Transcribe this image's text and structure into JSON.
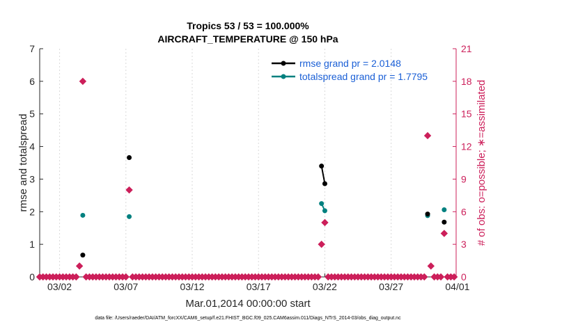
{
  "chart_data": {
    "type": "scatter",
    "title_line1": "Tropics 53 / 53 = 100.000%",
    "title_line2": "AIRCRAFT_TEMPERATURE @ 150 hPa",
    "xlabel": "Mar.01,2014 00:00:00 start",
    "ylabel_left": "rmse and totalspread",
    "ylabel_right": "# of obs: o=possible; ∗=assimilated",
    "xlim": [
      0.5,
      31.9
    ],
    "ylim_left": [
      0,
      7
    ],
    "ylim_right": [
      0,
      21
    ],
    "x_ticks": [
      {
        "value": 2,
        "label": "03/02"
      },
      {
        "value": 7,
        "label": "03/07"
      },
      {
        "value": 12,
        "label": "03/12"
      },
      {
        "value": 17,
        "label": "03/17"
      },
      {
        "value": 22,
        "label": "03/22"
      },
      {
        "value": 27,
        "label": "03/27"
      },
      {
        "value": 32,
        "label": "04/01"
      }
    ],
    "y_ticks_left": [
      "0",
      "1",
      "2",
      "3",
      "4",
      "5",
      "6",
      "7"
    ],
    "y_ticks_right": [
      "0",
      "3",
      "6",
      "9",
      "12",
      "15",
      "18",
      "21"
    ],
    "colors": {
      "rmse": "#000000",
      "totalspread": "#00807f",
      "obs": "#cc1f5a",
      "legend_text": "#1a5fd6"
    },
    "series": [
      {
        "name": "rmse",
        "legend": "rmse grand pr = 2.0148",
        "segments": [
          [
            [
              3.75,
              0.67
            ]
          ],
          [
            [
              7.25,
              3.66
            ]
          ],
          [
            [
              21.75,
              3.4
            ],
            [
              22.0,
              2.86
            ]
          ],
          [
            [
              29.75,
              1.93
            ]
          ],
          [
            [
              31.0,
              1.68
            ]
          ]
        ]
      },
      {
        "name": "totalspread",
        "legend": "totalspread grand pr = 1.7795",
        "segments": [
          [
            [
              3.75,
              1.89
            ]
          ],
          [
            [
              7.25,
              1.85
            ]
          ],
          [
            [
              21.75,
              2.25
            ],
            [
              22.0,
              2.03
            ]
          ],
          [
            [
              29.75,
              1.88
            ]
          ],
          [
            [
              31.0,
              2.06
            ]
          ]
        ]
      },
      {
        "name": "obs_assimilated",
        "axis": "right",
        "points": [
          [
            3.5,
            1
          ],
          [
            3.75,
            18
          ],
          [
            7.25,
            8
          ],
          [
            21.75,
            3
          ],
          [
            22.0,
            5
          ],
          [
            29.75,
            13
          ],
          [
            30.0,
            1
          ],
          [
            31.0,
            4
          ]
        ]
      }
    ],
    "footnote": "data file: /Users/raeder/DAI/ATM_forcXX/CAM6_setup/f.e21.FHIST_BGC.f09_025.CAM6assim.011/Diags_NTrS_2014-03/obs_diag_output.nc"
  }
}
